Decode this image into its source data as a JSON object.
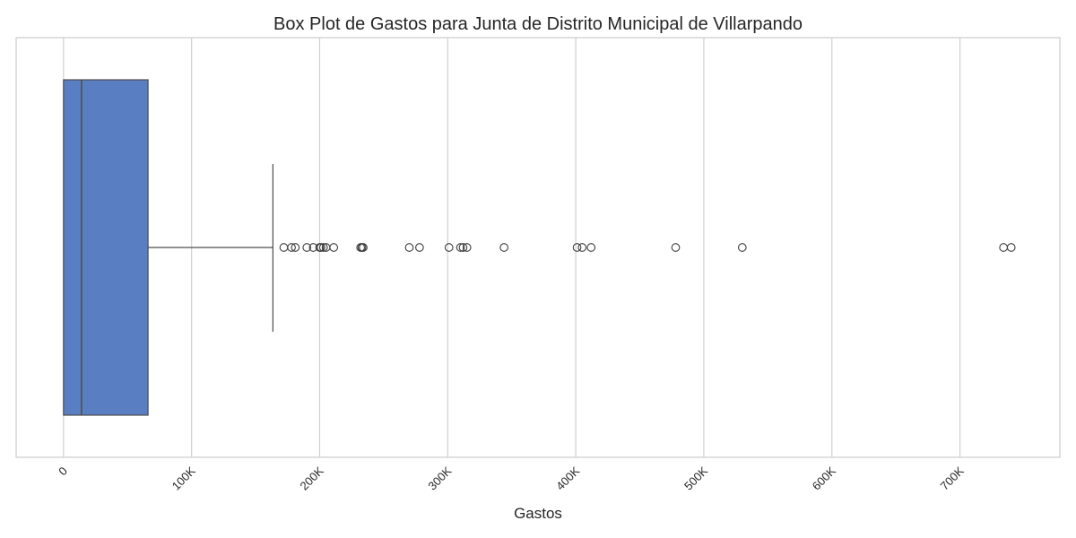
{
  "chart_data": {
    "type": "box",
    "title": "Box Plot de Gastos para Junta de Distrito Municipal de Villarpando",
    "xlabel": "Gastos",
    "ylabel": "",
    "orientation": "horizontal",
    "xlim": [
      -37000,
      778000
    ],
    "xticks": [
      0,
      100000,
      200000,
      300000,
      400000,
      500000,
      600000,
      700000
    ],
    "xtick_labels": [
      "0",
      "100K",
      "200K",
      "300K",
      "400K",
      "500K",
      "600K",
      "700K"
    ],
    "grid": true,
    "box": {
      "whisker_low": 0,
      "q1": 0,
      "median": 14000,
      "q3": 66000,
      "whisker_high": 163500
    },
    "outliers": [
      172000,
      178000,
      181000,
      190000,
      195000,
      200000,
      201000,
      203000,
      205000,
      211000,
      232000,
      233000,
      234000,
      270000,
      278000,
      301000,
      310000,
      312000,
      315000,
      344000,
      401000,
      405000,
      412000,
      478000,
      530000,
      734000,
      740000
    ],
    "colors": {
      "box_fill": "#5a7ec2",
      "box_edge": "#4d4d4d",
      "grid": "#d0d0d0",
      "frame": "#cccccc"
    }
  }
}
